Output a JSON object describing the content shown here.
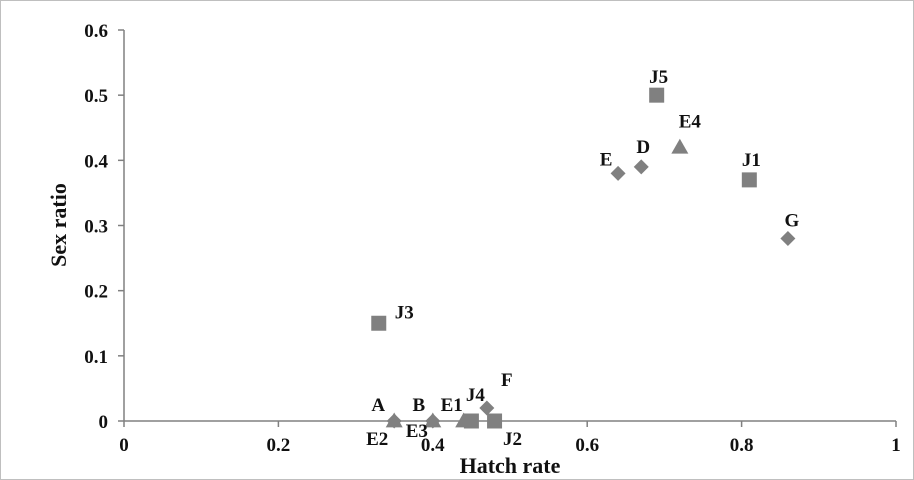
{
  "chart_data": {
    "type": "scatter",
    "title": "",
    "xlabel": "Hatch rate",
    "ylabel": "Sex ratio",
    "xlim": [
      0,
      1
    ],
    "ylim": [
      0,
      0.6
    ],
    "x_ticks": [
      "0",
      "0.2",
      "0.4",
      "0.6",
      "0.8",
      "1"
    ],
    "y_ticks": [
      "0",
      "0.1",
      "0.2",
      "0.3",
      "0.4",
      "0.5",
      "0.6"
    ],
    "grid": false,
    "legend": "none",
    "marker_color": "#808080",
    "points": [
      {
        "label": "A",
        "marker": "diamond",
        "x": 0.35,
        "y": 0.0
      },
      {
        "label": "B",
        "marker": "diamond",
        "x": 0.4,
        "y": 0.0
      },
      {
        "label": "F",
        "marker": "diamond",
        "x": 0.47,
        "y": 0.02
      },
      {
        "label": "E",
        "marker": "diamond",
        "x": 0.64,
        "y": 0.38
      },
      {
        "label": "D",
        "marker": "diamond",
        "x": 0.67,
        "y": 0.39
      },
      {
        "label": "G",
        "marker": "diamond",
        "x": 0.86,
        "y": 0.28
      },
      {
        "label": "E2",
        "marker": "triangle",
        "x": 0.35,
        "y": 0.0
      },
      {
        "label": "E3",
        "marker": "triangle",
        "x": 0.4,
        "y": 0.0
      },
      {
        "label": "E1",
        "marker": "triangle",
        "x": 0.44,
        "y": 0.0
      },
      {
        "label": "E4",
        "marker": "triangle",
        "x": 0.72,
        "y": 0.42
      },
      {
        "label": "J3",
        "marker": "square",
        "x": 0.33,
        "y": 0.15
      },
      {
        "label": "J4",
        "marker": "square",
        "x": 0.45,
        "y": 0.0
      },
      {
        "label": "J2",
        "marker": "square",
        "x": 0.48,
        "y": 0.0
      },
      {
        "label": "J5",
        "marker": "square",
        "x": 0.69,
        "y": 0.5
      },
      {
        "label": "J1",
        "marker": "square",
        "x": 0.81,
        "y": 0.37
      }
    ]
  }
}
